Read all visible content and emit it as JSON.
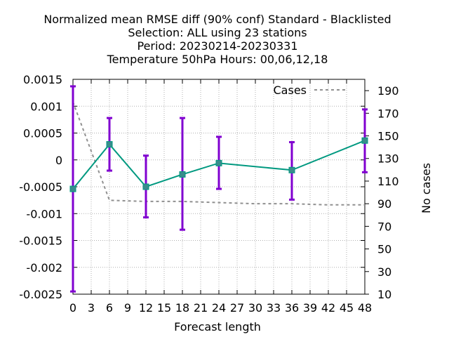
{
  "chart_data": {
    "type": "line",
    "title_lines": [
      "Normalized mean RMSE diff (90% conf) Standard - Blacklisted",
      "Selection: ALL using    23 stations",
      "Period: 20230214-20230331",
      "Temperature 50hPa   Hours:  00,06,12,18"
    ],
    "xlabel": "Forecast length",
    "ylabel": "",
    "y2label": "No cases",
    "x_ticks": [
      0,
      3,
      6,
      9,
      12,
      15,
      18,
      21,
      24,
      27,
      30,
      33,
      36,
      39,
      42,
      45,
      48
    ],
    "y_ticks": [
      0.0015,
      0.001,
      0.0005,
      0,
      -0.0005,
      -0.001,
      -0.0015,
      -0.002,
      -0.0025
    ],
    "y_tick_labels": [
      "0.0015",
      "0.001",
      "0.0005",
      "0",
      "-0.0005",
      "-0.001",
      "-0.0015",
      "-0.002",
      "-0.0025"
    ],
    "y2_ticks": [
      190,
      170,
      150,
      130,
      110,
      90,
      70,
      50,
      30,
      10
    ],
    "xlim": [
      0,
      48
    ],
    "ylim": [
      -0.0025,
      0.0015
    ],
    "y2lim": [
      10,
      200
    ],
    "grid": true,
    "legend": {
      "placement": "top-right",
      "entries": [
        "Cases"
      ]
    },
    "series": [
      {
        "x": [
          0,
          6,
          12,
          18,
          24,
          36,
          48
        ],
        "values": [
          -0.00054,
          0.00029,
          -0.0005,
          -0.00027,
          -6e-05,
          -0.00019,
          0.00036
        ],
        "err_low": [
          -0.00245,
          -0.0002,
          -0.00107,
          -0.0013,
          -0.00054,
          -0.00074,
          -0.00023
        ],
        "err_high": [
          0.00137,
          0.00078,
          8e-05,
          0.00078,
          0.00043,
          0.00033,
          0.00094
        ],
        "color": "#009980",
        "errorbar_color": "#8000d0"
      },
      {
        "name": "Cases",
        "axis": "y2",
        "x": [
          0,
          6,
          12,
          18,
          24,
          30,
          36,
          42,
          48
        ],
        "values": [
          180,
          93,
          92,
          92,
          91,
          90,
          90,
          89,
          89
        ],
        "color": "#909090",
        "dash": true
      }
    ]
  }
}
